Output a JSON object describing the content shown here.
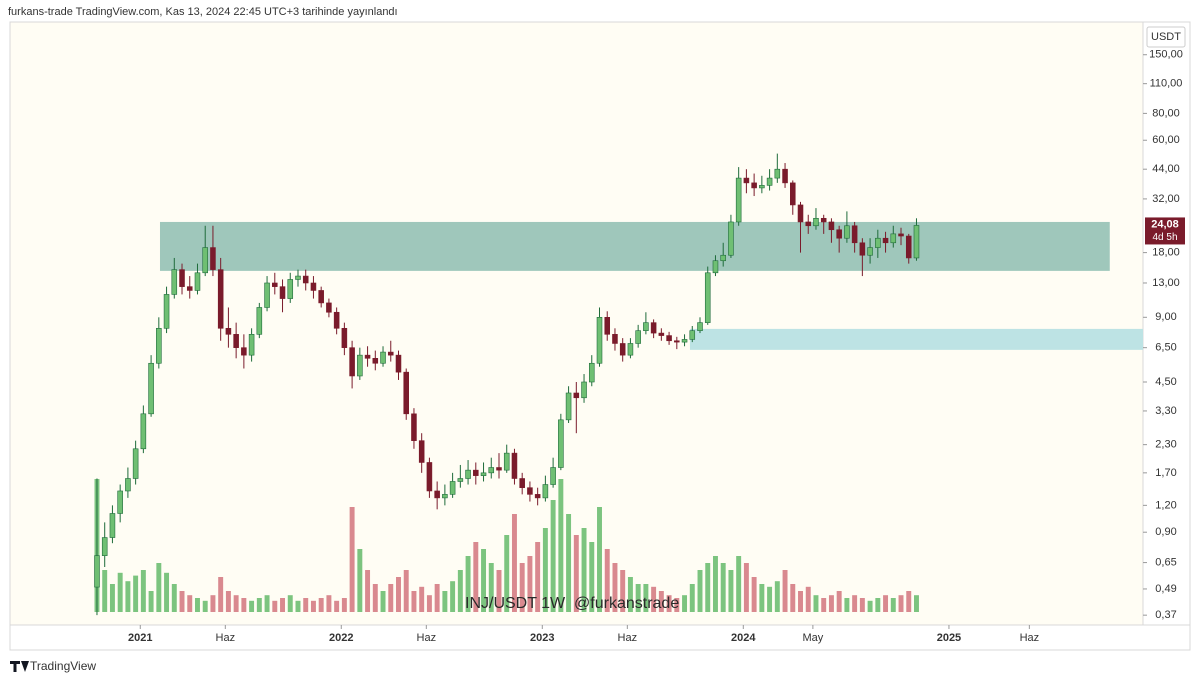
{
  "header": "furkans-trade TradingView.com, Kas 13, 2024 22:45 UTC+3 tarihinde yayınlandı",
  "footer": "TradingView",
  "chart_data": {
    "type": "candlestick",
    "currency": "USDT",
    "watermark": "INJ/USDT 1W  @furkanstrade",
    "log_scale": true,
    "grid": false,
    "up_color": "#1e6b3a",
    "down_color": "#7a1b2b",
    "volume_up_color": "#7cc47f",
    "volume_down_color": "#d9898f",
    "ylim": [
      0.333,
      213
    ],
    "yticks": [
      {
        "value": 150,
        "label": "150,00"
      },
      {
        "value": 110,
        "label": "110,00"
      },
      {
        "value": 80,
        "label": "80,00"
      },
      {
        "value": 60,
        "label": "60,00"
      },
      {
        "value": 44,
        "label": "44,00"
      },
      {
        "value": 32,
        "label": "32,00"
      },
      {
        "value": 18,
        "label": "18,00"
      },
      {
        "value": 13,
        "label": "13,00"
      },
      {
        "value": 9,
        "label": "9,00"
      },
      {
        "value": 6.5,
        "label": "6,50"
      },
      {
        "value": 4.5,
        "label": "4,50"
      },
      {
        "value": 3.3,
        "label": "3,30"
      },
      {
        "value": 2.3,
        "label": "2,30"
      },
      {
        "value": 1.7,
        "label": "1,70"
      },
      {
        "value": 1.2,
        "label": "1,20"
      },
      {
        "value": 0.9,
        "label": "0,90"
      },
      {
        "value": 0.65,
        "label": "0,65"
      },
      {
        "value": 0.49,
        "label": "0,49"
      },
      {
        "value": 0.37,
        "label": "0,37"
      }
    ],
    "xlim": [
      -11.25,
      135.3
    ],
    "xticks": [
      {
        "value": 5.6,
        "label": "2021"
      },
      {
        "value": 16.6,
        "label": "Haz"
      },
      {
        "value": 31.6,
        "label": "2022"
      },
      {
        "value": 42.6,
        "label": "Haz"
      },
      {
        "value": 57.6,
        "label": "2023"
      },
      {
        "value": 68.6,
        "label": "Haz"
      },
      {
        "value": 83.6,
        "label": "2024"
      },
      {
        "value": 92.6,
        "label": "May"
      },
      {
        "value": 110.2,
        "label": "2025"
      },
      {
        "value": 120.6,
        "label": "Haz"
      }
    ],
    "last_price": {
      "value": 24.08,
      "label": "24,08",
      "countdown": "4d 5h",
      "color": "#7a1b2b"
    },
    "zones": [
      {
        "start": 8.15,
        "end": 131,
        "top": 25.0,
        "bottom": 14.8,
        "color": "#9fc7bb"
      },
      {
        "start": 76.7,
        "end": 135.3,
        "top": 7.95,
        "bottom": 6.35,
        "color": "#bde3e4"
      }
    ],
    "volume_ylim": [
      0,
      100
    ],
    "open": [
      0.5,
      0.7,
      0.85,
      1.1,
      1.4,
      1.6,
      2.2,
      3.2,
      5.5,
      8,
      11.5,
      15,
      12.5,
      12,
      14.5,
      19,
      15,
      8,
      7.5,
      6.5,
      6,
      7.5,
      10,
      13,
      12.5,
      11,
      13.5,
      14,
      13,
      12,
      10.5,
      9.5,
      8,
      6.5,
      4.8,
      6,
      5.8,
      5.5,
      6.2,
      6,
      5,
      3.2,
      2.4,
      1.9,
      1.4,
      1.3,
      1.35,
      1.55,
      1.6,
      1.75,
      1.65,
      1.7,
      1.8,
      1.75,
      2.1,
      1.6,
      1.45,
      1.35,
      1.3,
      1.5,
      1.8,
      3,
      4,
      3.8,
      4.5,
      5.5,
      9,
      7.5,
      6.8,
      6,
      6.8,
      7.8,
      8.5,
      7.6,
      7.4,
      7,
      6.9,
      7.1,
      7.8,
      8.5,
      14.5,
      16.5,
      17.5,
      25,
      40,
      38,
      36,
      37,
      40,
      44,
      38,
      30,
      25,
      24,
      26,
      25,
      23,
      21,
      24,
      20,
      17.5,
      19,
      21,
      20,
      22,
      21.5,
      17
    ],
    "high": [
      1.6,
      1,
      1.2,
      1.5,
      1.8,
      2.4,
      3.5,
      6,
      9,
      12.5,
      17,
      16,
      14,
      16,
      24,
      24,
      17,
      10,
      8.5,
      7.5,
      8,
      10.5,
      14,
      14.5,
      13.5,
      14.5,
      15,
      15,
      14,
      12.5,
      11,
      10,
      8.5,
      7,
      6.5,
      6.6,
      6.3,
      6.6,
      7,
      6.3,
      5.2,
      3.4,
      2.6,
      2,
      1.55,
      1.5,
      1.7,
      1.85,
      1.95,
      1.9,
      1.9,
      2,
      2.1,
      2.3,
      2.2,
      1.7,
      1.55,
      1.45,
      1.65,
      2,
      3.2,
      4.3,
      4.5,
      4.9,
      6,
      10,
      9.6,
      8,
      7.2,
      7.2,
      8.3,
      9.5,
      8.8,
      8,
      7.7,
      7.3,
      7.5,
      8.2,
      9,
      15.5,
      17.5,
      20,
      27,
      45,
      44,
      42,
      41,
      44,
      52,
      47,
      39,
      31,
      27,
      29,
      27,
      26,
      24,
      28,
      25,
      21,
      21,
      23,
      22.5,
      24,
      23.5,
      22,
      26
    ],
    "low": [
      0.37,
      0.62,
      0.8,
      1,
      1.3,
      1.5,
      2.1,
      3.1,
      5.2,
      7.6,
      11,
      11.5,
      11,
      11.5,
      14,
      14,
      7,
      6.5,
      5.8,
      5.2,
      5.6,
      7.2,
      9.6,
      11.5,
      9.5,
      10.5,
      12.5,
      12,
      11,
      10,
      9,
      7.5,
      6,
      4.2,
      4.6,
      5.3,
      5.1,
      5.3,
      5.6,
      4.6,
      3,
      2.2,
      1.7,
      1.3,
      1.15,
      1.2,
      1.3,
      1.45,
      1.5,
      1.5,
      1.55,
      1.6,
      1.6,
      1.7,
      1.5,
      1.35,
      1.25,
      1.2,
      1.25,
      1.45,
      1.75,
      2.9,
      2.6,
      3.6,
      4.3,
      5.3,
      7,
      6.3,
      5.6,
      5.8,
      6.5,
      7.5,
      7.2,
      7,
      6.7,
      6.4,
      6.6,
      6.9,
      7.6,
      8.3,
      14,
      15.5,
      17,
      24,
      34,
      33,
      34,
      35,
      38,
      36,
      27,
      18,
      22,
      23,
      22,
      20,
      18,
      20,
      18,
      14,
      16,
      17,
      18,
      19,
      19.5,
      16,
      16.5
    ],
    "close": [
      0.7,
      0.85,
      1.1,
      1.4,
      1.6,
      2.2,
      3.2,
      5.5,
      8,
      11.5,
      15,
      12.5,
      12,
      14.5,
      19,
      15,
      8,
      7.5,
      6.5,
      6,
      7.5,
      10,
      13,
      12.5,
      11,
      13.5,
      14,
      13,
      12,
      10.5,
      9.5,
      8,
      6.5,
      4.8,
      6,
      5.8,
      5.5,
      6.2,
      6,
      5,
      3.2,
      2.4,
      1.9,
      1.4,
      1.3,
      1.35,
      1.55,
      1.6,
      1.75,
      1.65,
      1.7,
      1.8,
      1.75,
      2.1,
      1.6,
      1.45,
      1.35,
      1.3,
      1.5,
      1.8,
      3,
      4,
      3.8,
      4.5,
      5.5,
      9,
      7.5,
      6.8,
      6,
      6.8,
      7.8,
      8.5,
      7.6,
      7.4,
      7,
      6.9,
      7.1,
      7.8,
      8.5,
      14.5,
      16.5,
      17.5,
      25,
      40,
      38,
      36,
      37,
      40,
      44,
      38,
      30,
      25,
      24,
      26,
      25,
      23,
      21,
      24,
      20,
      17.5,
      19,
      21,
      20,
      22,
      21.5,
      17,
      24.08
    ],
    "volume": [
      95,
      30,
      20,
      28,
      22,
      26,
      30,
      15,
      35,
      28,
      20,
      15,
      12,
      10,
      8,
      12,
      25,
      15,
      12,
      10,
      8,
      10,
      12,
      8,
      10,
      12,
      8,
      10,
      8,
      10,
      12,
      8,
      10,
      75,
      45,
      30,
      20,
      15,
      20,
      25,
      30,
      15,
      18,
      12,
      20,
      15,
      22,
      30,
      40,
      50,
      45,
      35,
      30,
      55,
      70,
      35,
      40,
      50,
      60,
      80,
      95,
      70,
      55,
      60,
      50,
      75,
      45,
      35,
      30,
      25,
      20,
      20,
      18,
      15,
      12,
      10,
      12,
      20,
      30,
      35,
      40,
      35,
      30,
      40,
      35,
      25,
      20,
      18,
      22,
      30,
      20,
      15,
      18,
      12,
      10,
      12,
      15,
      10,
      12,
      10,
      8,
      10,
      12,
      10,
      12,
      15,
      12
    ]
  }
}
